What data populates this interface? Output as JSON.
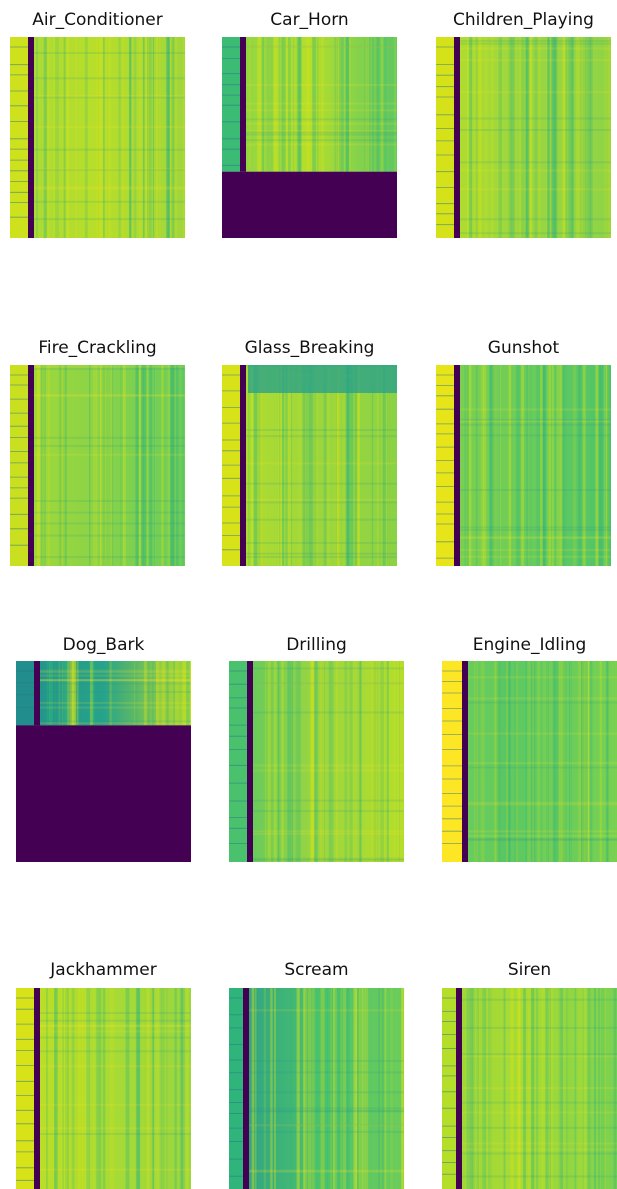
{
  "panels": [
    {
      "title": "Air_Conditioner"
    },
    {
      "title": "Car_Horn"
    },
    {
      "title": "Children_Playing"
    },
    {
      "title": "Fire_Crackling"
    },
    {
      "title": "Glass_Breaking"
    },
    {
      "title": "Gunshot"
    },
    {
      "title": "Dog_Bark"
    },
    {
      "title": "Drilling"
    },
    {
      "title": "Engine_Idling"
    },
    {
      "title": "Jackhammer"
    },
    {
      "title": "Scream"
    },
    {
      "title": "Siren"
    }
  ]
}
